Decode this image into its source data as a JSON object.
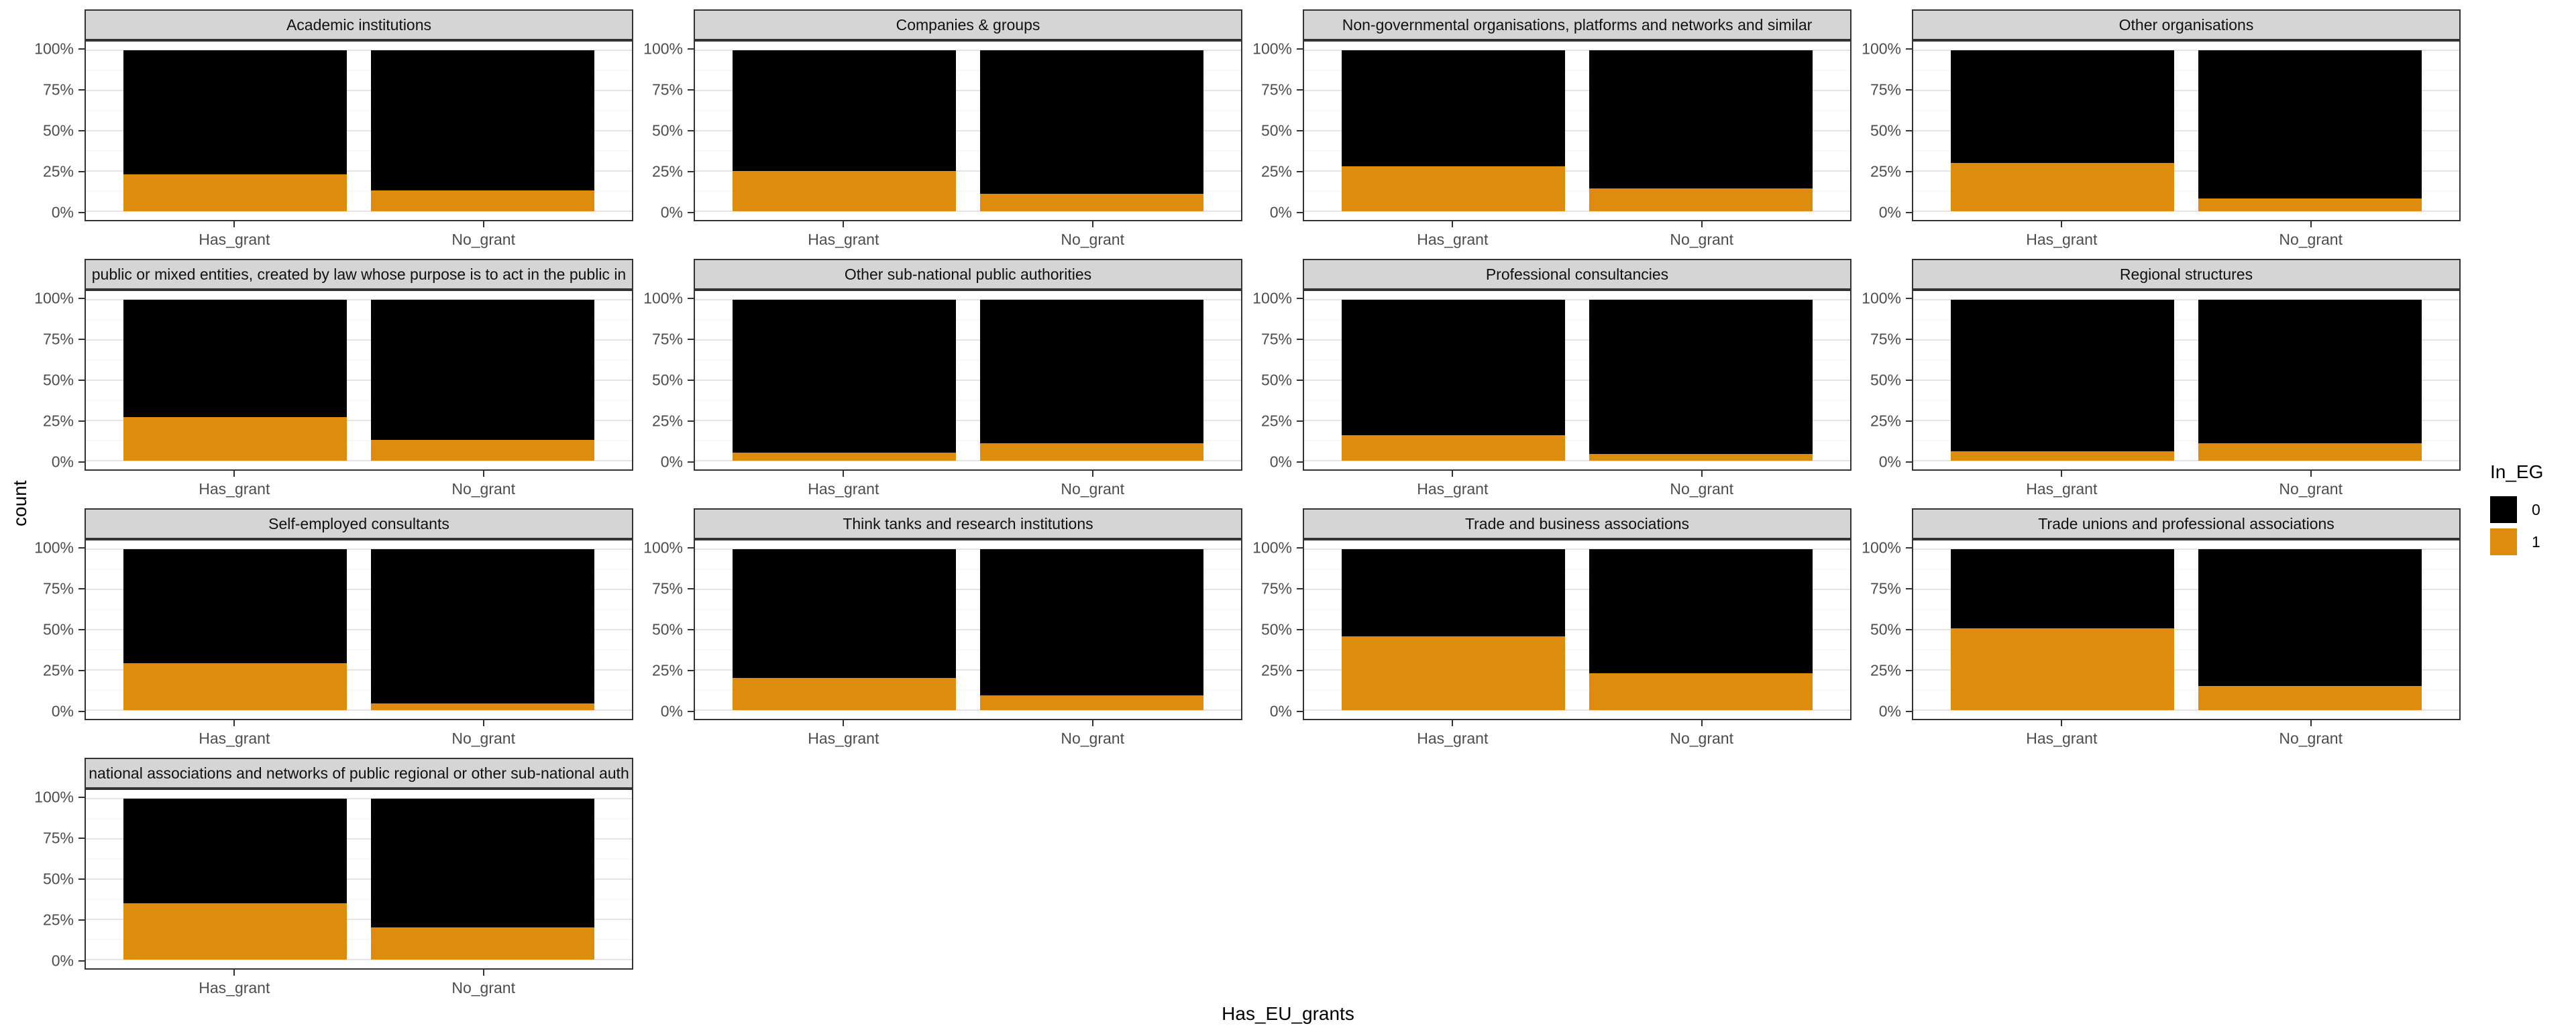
{
  "figure": {
    "y_axis_title": "count",
    "x_axis_title": "Has_EU_grants",
    "legend": {
      "title": "In_EG",
      "items": [
        {
          "label": "0",
          "color": "#000000"
        },
        {
          "label": "1",
          "color": "#DD8C0E"
        }
      ]
    }
  },
  "chart_data": {
    "type": "bar",
    "stacked": true,
    "normalized": "percent",
    "grid": "on",
    "legend_position": "right",
    "categories": [
      "Has_grant",
      "No_grant"
    ],
    "x_axis_title": "Has_EU_grants",
    "y_axis_title": "count",
    "ylim": [
      0,
      100
    ],
    "y_ticks": [
      {
        "value": 0,
        "label": "0%"
      },
      {
        "value": 25,
        "label": "25%"
      },
      {
        "value": 50,
        "label": "50%"
      },
      {
        "value": 75,
        "label": "75%"
      },
      {
        "value": 100,
        "label": "100%"
      }
    ],
    "y_minor_ticks": [
      12.5,
      37.5,
      62.5,
      87.5
    ],
    "series": [
      {
        "name": "0",
        "color": "#000000"
      },
      {
        "name": "1",
        "color": "#DD8C0E"
      }
    ],
    "facets": [
      {
        "title": "Academic institutions",
        "in_eg_1_pct": [
          23,
          13
        ]
      },
      {
        "title": "Companies & groups",
        "in_eg_1_pct": [
          25,
          11
        ]
      },
      {
        "title": "Non-governmental organisations, platforms and networks and similar",
        "in_eg_1_pct": [
          28,
          14
        ]
      },
      {
        "title": "Other organisations",
        "in_eg_1_pct": [
          30,
          8
        ]
      },
      {
        "title": "public or mixed entities, created by law whose purpose is to act in the public in",
        "in_eg_1_pct": [
          27,
          13
        ]
      },
      {
        "title": "Other sub-national public authorities",
        "in_eg_1_pct": [
          5,
          11
        ]
      },
      {
        "title": "Professional consultancies",
        "in_eg_1_pct": [
          16,
          4
        ]
      },
      {
        "title": "Regional structures",
        "in_eg_1_pct": [
          6,
          11
        ]
      },
      {
        "title": "Self-employed consultants",
        "in_eg_1_pct": [
          29,
          4
        ]
      },
      {
        "title": "Think tanks and research institutions",
        "in_eg_1_pct": [
          20,
          9
        ]
      },
      {
        "title": "Trade and business associations",
        "in_eg_1_pct": [
          46,
          23
        ]
      },
      {
        "title": "Trade unions and professional associations",
        "in_eg_1_pct": [
          51,
          15
        ]
      },
      {
        "title": "national associations and networks of public regional or other sub-national auth",
        "in_eg_1_pct": [
          35,
          20
        ]
      }
    ],
    "bar_centers_pct": [
      27.3,
      72.7
    ],
    "bar_width_pct": 40.9
  }
}
